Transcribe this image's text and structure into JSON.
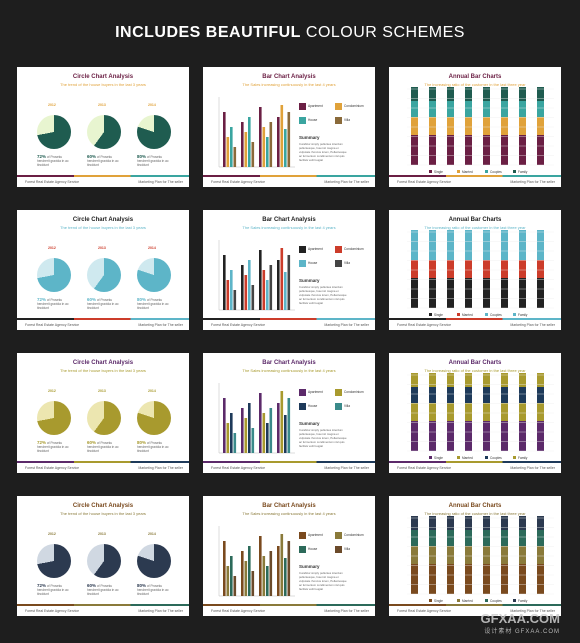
{
  "header": {
    "bold": "INCLUDES BEAUTIFUL",
    "light": "COLOUR SCHEMES"
  },
  "footer": {
    "left": "Forest Real Estate Agency Service",
    "right": "Marketing Plan for The seller"
  },
  "years": [
    "2012",
    "2013",
    "2014"
  ],
  "circle": {
    "title": "Circle Chart Analysis",
    "subtitle": "The trend of the house buyers in the last 3 years",
    "captions": [
      {
        "pct": "72%",
        "text": "of Proseku hendrerit gravida in ac tincidunt"
      },
      {
        "pct": "60%",
        "text": "of Proseku hendrerit gravida in ac tincidunt"
      },
      {
        "pct": "80%",
        "text": "of Proseku hendrerit gravida in ac tincidunt"
      }
    ],
    "values": [
      72,
      60,
      80
    ]
  },
  "bar": {
    "title": "Bar Chart Analysis",
    "subtitle": "The Sales increasing continuously in the last 4 years",
    "legend": [
      "Apartment",
      "Condominium",
      "House",
      "Villa"
    ],
    "summary_title": "Summary",
    "summary_text": "Curabitur simply pellentes interdum pellentesque, fuset sit magna et vulputate rhoncus lorem, Pellentesque ac fermentum condimentum nisl quis facilisis velit feugiat"
  },
  "annual": {
    "title": "Annual Bar Charts",
    "subtitle": "The increasing ratio of the customer in the last three year",
    "legend": [
      "Single",
      "Married",
      "Couples",
      "Family"
    ]
  },
  "schemes": [
    {
      "name": "green",
      "colors": [
        "#1f5c50",
        "#e8f5d0",
        "#6b1f44",
        "#e0a23a",
        "#3aa5a0",
        "#8a6a3a"
      ],
      "title": "#6b1f44",
      "sub": "#e0a23a"
    },
    {
      "name": "blue",
      "colors": [
        "#5db5c8",
        "#cfe9ef",
        "#222222",
        "#cc3c2a",
        "#5db5c8",
        "#444444"
      ],
      "title": "#222222",
      "sub": "#5db5c8"
    },
    {
      "name": "olive",
      "colors": [
        "#a89a2e",
        "#ece6b0",
        "#5c2a6a",
        "#a89a2e",
        "#1e3a5a",
        "#3a8a8a"
      ],
      "title": "#5c2a6a",
      "sub": "#a89a2e"
    },
    {
      "name": "navy",
      "colors": [
        "#2c3a50",
        "#d0d8e2",
        "#7a4a1e",
        "#8a7a3a",
        "#2c6a5a",
        "#6b4a2a"
      ],
      "title": "#7a4a1e",
      "sub": "#8a7a3a"
    }
  ],
  "watermark": {
    "main": "GFXAA.COM",
    "sub": "设计素材 GFXAA.COM"
  }
}
